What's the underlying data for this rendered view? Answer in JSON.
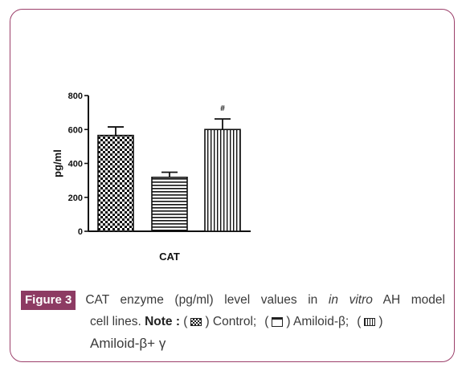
{
  "chart_data": {
    "type": "bar",
    "title": "",
    "xlabel": "CAT",
    "ylabel": "pg/ml",
    "ylim": [
      0,
      800
    ],
    "yticks": [
      "0",
      "200",
      "400",
      "600",
      "800"
    ],
    "categories": [
      "Control",
      "Amiloid-β",
      "Amiloid-β+ γ"
    ],
    "values": [
      565,
      318,
      600
    ],
    "errors": [
      50,
      30,
      62
    ],
    "annotations": [
      "",
      "",
      "#"
    ],
    "patterns": [
      "checker",
      "horizontal",
      "vertical"
    ],
    "grid": false
  },
  "caption": {
    "figure_tag": "Figure 3",
    "line1_a": "CAT enzyme (pg/ml) level values in",
    "line1_italic": "in vitro",
    "line1_b": "AH model",
    "line2_a": "cell lines.",
    "note_label": "Note :",
    "paren_open": "(",
    "control_suffix": ") Control;",
    "amiloid_suffix": ") Amiloid-β;",
    "close_paren": ")",
    "line3": "Amiloid-β+ γ"
  },
  "colors": {
    "frame": "#9c3f6a",
    "figure_tag_bg": "#8d3b63",
    "ink": "#222222"
  }
}
